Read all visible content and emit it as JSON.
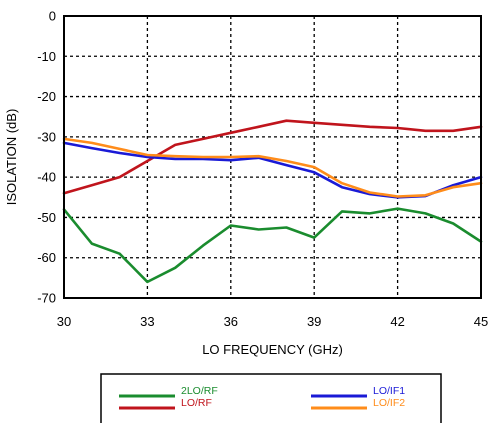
{
  "chart_data": {
    "type": "line",
    "title": "",
    "xlabel": "LO FREQUENCY (GHz)",
    "ylabel": "ISOLATION  (dB)",
    "xlim": [
      30,
      45
    ],
    "ylim": [
      -70,
      0
    ],
    "xticks": [
      30,
      33,
      36,
      39,
      42,
      45
    ],
    "yticks": [
      0,
      -10,
      -20,
      -30,
      -40,
      -50,
      -60,
      -70
    ],
    "grid": true,
    "grid_style": "dotted",
    "legend_position": "bottom",
    "series": [
      {
        "name": "2LO/RF",
        "color": "#1a8c2e",
        "x": [
          30,
          31,
          32,
          33,
          34,
          35,
          36,
          37,
          38,
          39,
          40,
          41,
          42,
          43,
          44,
          45
        ],
        "y": [
          -48,
          -56.5,
          -59,
          -66,
          -62.5,
          -57,
          -52,
          -53,
          -52.5,
          -55,
          -48.5,
          -49,
          -47.8,
          -49,
          -51.5,
          -56
        ]
      },
      {
        "name": "LO/RF",
        "color": "#c0141c",
        "x": [
          30,
          31,
          32,
          33,
          34,
          35,
          36,
          37,
          38,
          39,
          40,
          41,
          42,
          43,
          44,
          45
        ],
        "y": [
          -44,
          -42,
          -40,
          -36,
          -32,
          -30.5,
          -29,
          -27.5,
          -26,
          -26.5,
          -27,
          -27.5,
          -27.8,
          -28.5,
          -28.5,
          -27.5
        ]
      },
      {
        "name": "LO/IF1",
        "color": "#1a1ad6",
        "x": [
          30,
          31,
          32,
          33,
          34,
          35,
          36,
          37,
          38,
          39,
          40,
          41,
          42,
          43,
          44,
          45
        ],
        "y": [
          -31.5,
          -32.8,
          -34,
          -35,
          -35.5,
          -35.5,
          -35.8,
          -35.2,
          -37,
          -38.8,
          -42.5,
          -44.2,
          -45,
          -44.7,
          -42,
          -40
        ]
      },
      {
        "name": "LO/IF2",
        "color": "#ff8c1a",
        "x": [
          30,
          31,
          32,
          33,
          34,
          35,
          36,
          37,
          38,
          39,
          40,
          41,
          42,
          43,
          44,
          45
        ],
        "y": [
          -30.5,
          -31.5,
          -33,
          -34.5,
          -34.8,
          -35,
          -35,
          -34.8,
          -36,
          -37.5,
          -41.5,
          -43.8,
          -44.8,
          -44.5,
          -42.5,
          -41.5
        ]
      }
    ]
  }
}
